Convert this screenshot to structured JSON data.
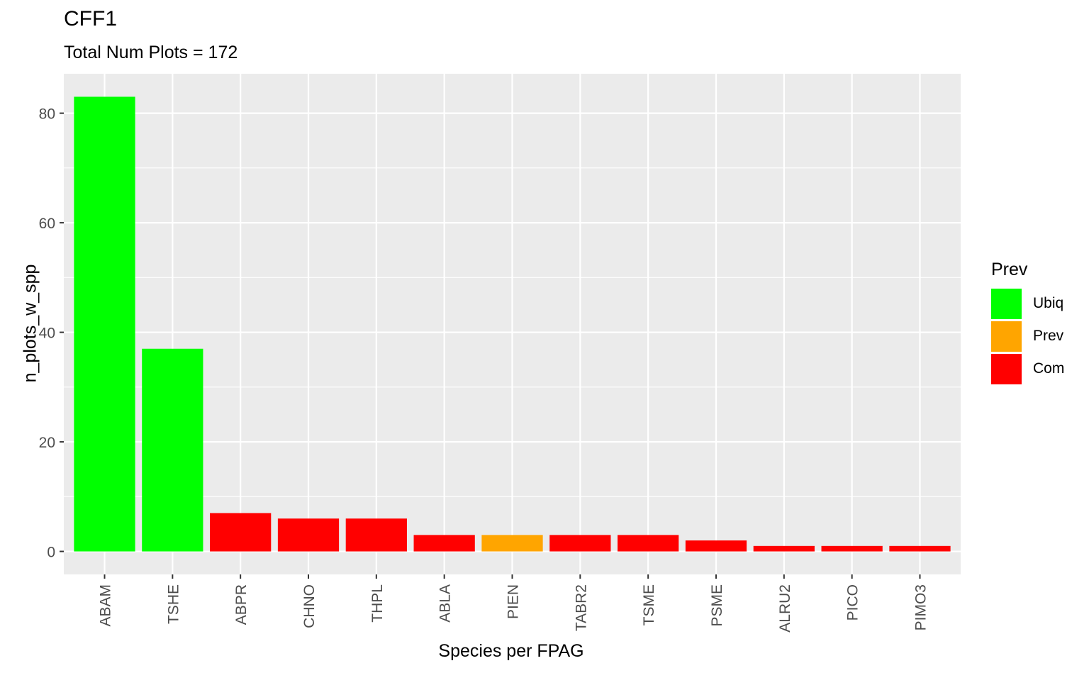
{
  "chart_data": {
    "type": "bar",
    "title": "CFF1",
    "subtitle": "Total Num Plots = 172",
    "xlabel": "Species per FPAG",
    "ylabel": "n_plots_w_spp",
    "ylim": [
      -4.2,
      87.2
    ],
    "yticks": [
      0,
      20,
      40,
      60,
      80
    ],
    "categories": [
      "ABAM",
      "TSHE",
      "ABPR",
      "CHNO",
      "THPL",
      "ABLA",
      "PIEN",
      "TABR2",
      "TSME",
      "PSME",
      "ALRU2",
      "PICO",
      "PIMO3"
    ],
    "values": [
      83,
      37,
      7,
      6,
      6,
      3,
      3,
      3,
      3,
      2,
      1,
      1,
      1
    ],
    "groups": [
      "Ubiq",
      "Ubiq",
      "Com",
      "Com",
      "Com",
      "Com",
      "Prev",
      "Com",
      "Com",
      "Com",
      "Com",
      "Com",
      "Com"
    ],
    "legend": {
      "title": "Prev",
      "position": "right",
      "entries": [
        {
          "label": "Ubiq",
          "color": "#00FF00"
        },
        {
          "label": "Prev",
          "color": "#FFA500"
        },
        {
          "label": "Com",
          "color": "#FF0000"
        }
      ]
    },
    "panel_color": "#EBEBEB",
    "grid": true
  }
}
